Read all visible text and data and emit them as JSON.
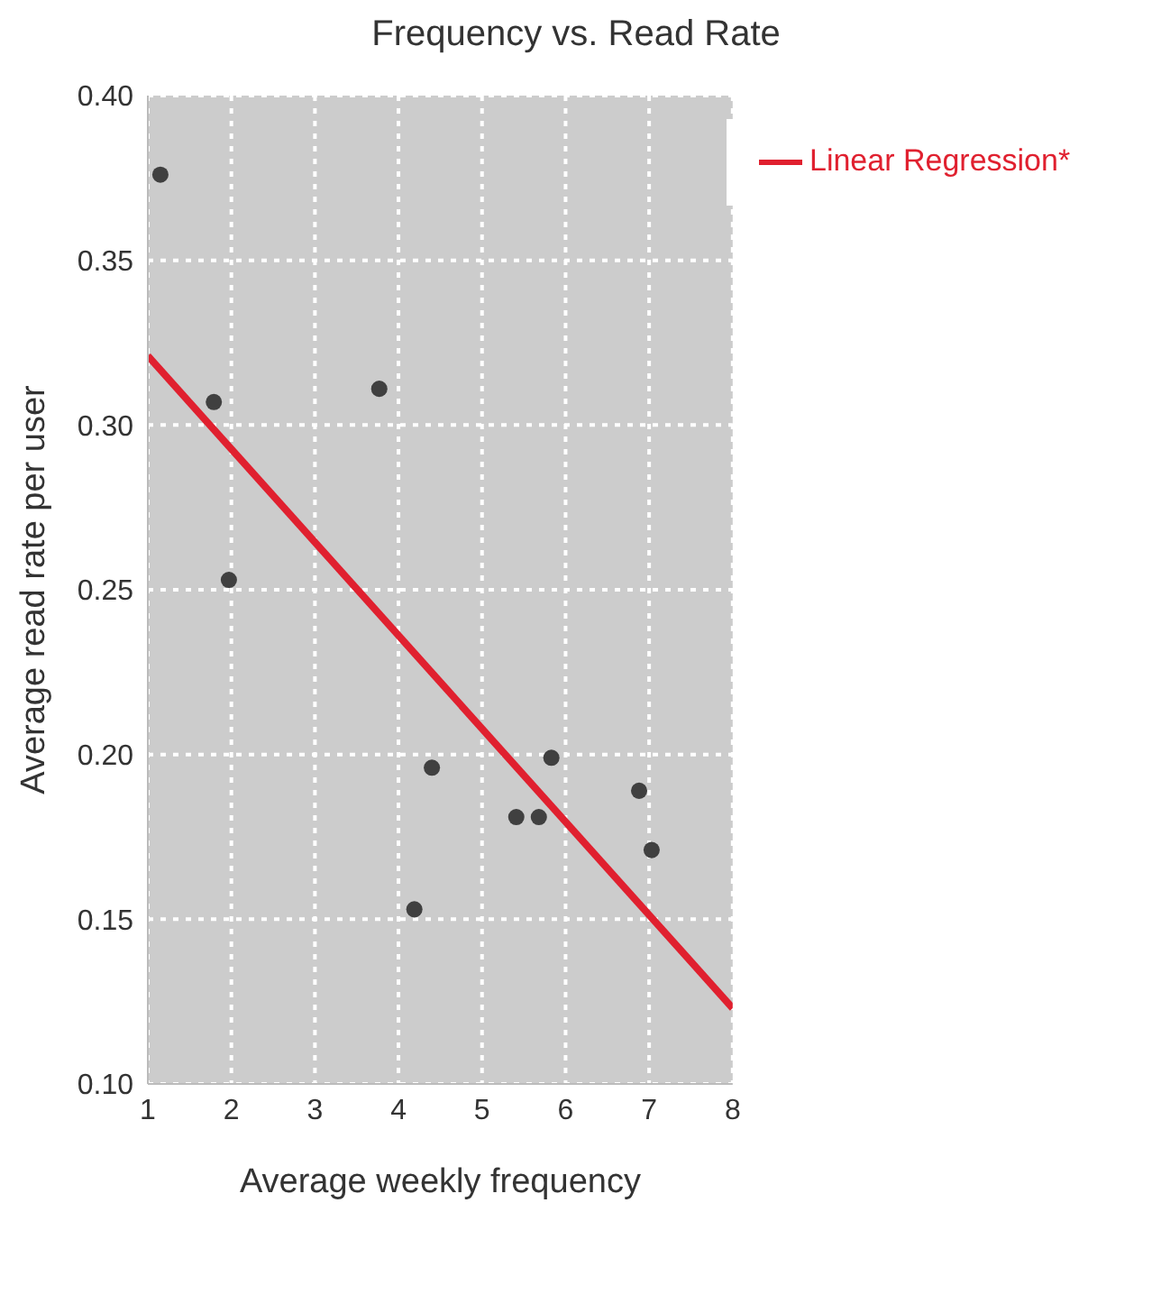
{
  "chart_data": {
    "type": "scatter",
    "title": "Frequency vs. Read Rate",
    "xlabel": "Average weekly frequency",
    "ylabel": "Average read rate per user",
    "xlim": [
      1,
      8
    ],
    "xticks": [
      1,
      2,
      3,
      4,
      5,
      6,
      7,
      8
    ],
    "ylim": [
      0.1,
      0.4
    ],
    "yticks": [
      {
        "value": 0.1,
        "label": "0.10"
      },
      {
        "value": 0.15,
        "label": "0.15"
      },
      {
        "value": 0.2,
        "label": "0.20"
      },
      {
        "value": 0.25,
        "label": "0.25"
      },
      {
        "value": 0.3,
        "label": "0.30"
      },
      {
        "value": 0.35,
        "label": "0.35"
      },
      {
        "value": 0.4,
        "label": "0.40"
      }
    ],
    "grid": true,
    "legend": "top right",
    "marker": "circle",
    "series": [
      {
        "type": "scatter",
        "color": "#404040",
        "x": [
          1.15,
          1.79,
          1.97,
          3.77,
          4.19,
          4.4,
          5.41,
          5.68,
          5.83,
          6.88,
          7.03
        ],
        "values": [
          0.376,
          0.307,
          0.253,
          0.311,
          0.153,
          0.196,
          0.181,
          0.181,
          0.199,
          0.189,
          0.171
        ]
      },
      {
        "type": "line",
        "name": "Linear Regression*",
        "color": "#e0202f",
        "x": [
          1,
          8
        ],
        "values": [
          0.321,
          0.123
        ],
        "marker": "none",
        "line_style": "solid"
      }
    ]
  }
}
